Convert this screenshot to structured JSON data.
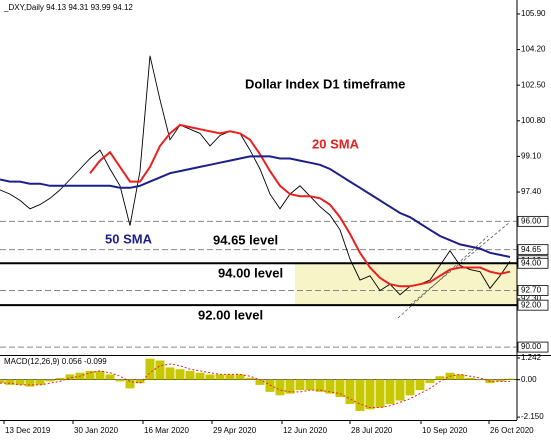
{
  "chart_data": [
    {
      "type": "line",
      "header": "_DXY,Daily  94.13 94.31 93.99 94.12",
      "title": "Dollar Index D1 timeframe",
      "x": [
        0,
        5,
        10,
        15,
        20,
        25,
        30,
        35,
        40,
        45,
        50,
        55,
        60,
        65,
        70,
        75,
        80,
        85,
        90,
        95,
        100,
        105,
        110,
        115,
        120,
        125,
        130,
        135,
        140,
        145,
        150,
        155,
        160,
        165,
        170,
        175,
        180,
        185,
        190,
        195,
        200,
        205,
        210,
        215,
        220,
        225,
        230,
        235,
        240,
        245,
        250,
        255
      ],
      "xlim": [
        0,
        258.5
      ],
      "xticks": [
        {
          "value": 2,
          "label": "13 Dec 2019"
        },
        {
          "value": 36.5,
          "label": "30 Jan 2020"
        },
        {
          "value": 71.5,
          "label": "16 Mar 2020"
        },
        {
          "value": 106,
          "label": "29 Apr 2020"
        },
        {
          "value": 141,
          "label": "12 Jun 2020"
        },
        {
          "value": 175,
          "label": "28 Jul 2020"
        },
        {
          "value": 210.5,
          "label": "10 Sep 2020"
        },
        {
          "value": 244.5,
          "label": "26 Oct 2020"
        }
      ],
      "ylim": [
        89.67,
        106.47
      ],
      "yticks": [
        {
          "value": 105.9,
          "label": "105.90"
        },
        {
          "value": 104.2,
          "label": "104.20"
        },
        {
          "value": 102.5,
          "label": "102.50"
        },
        {
          "value": 100.8,
          "label": "100.80"
        },
        {
          "value": 99.1,
          "label": "99.10"
        },
        {
          "value": 97.4,
          "label": "97.40"
        },
        {
          "value": 92.3,
          "label": "92.30"
        }
      ],
      "series": [
        {
          "color": "#000000",
          "values": [
            97.5,
            97.3,
            97.0,
            96.6,
            96.8,
            97.1,
            97.5,
            98.0,
            98.5,
            99.0,
            99.4,
            98.5,
            97.7,
            95.8,
            98.4,
            103.9,
            101.8,
            99.9,
            100.6,
            100.4,
            100.2,
            99.6,
            100.1,
            100.3,
            100.2,
            99.4,
            98.5,
            97.3,
            96.6,
            97.3,
            97.7,
            97.2,
            96.7,
            96.3,
            95.6,
            94.2,
            93.2,
            93.4,
            92.7,
            93.0,
            92.5,
            92.9,
            93.0,
            93.2,
            93.9,
            94.6,
            93.9,
            93.7,
            93.6,
            92.8,
            93.4,
            94.1
          ]
        },
        {
          "name": "20 SMA",
          "color": "#e8201f",
          "values": [
            null,
            null,
            null,
            null,
            null,
            null,
            null,
            null,
            null,
            98.3,
            98.9,
            99.3,
            98.6,
            97.9,
            97.9,
            98.6,
            99.6,
            100.2,
            100.6,
            100.5,
            100.4,
            100.3,
            100.2,
            100.3,
            100.2,
            99.9,
            99.2,
            98.4,
            97.7,
            97.3,
            97.2,
            97.2,
            97.1,
            96.8,
            96.2,
            95.4,
            94.5,
            93.8,
            93.3,
            93.0,
            92.9,
            92.9,
            93.0,
            93.1,
            93.4,
            93.7,
            93.8,
            93.8,
            93.8,
            93.6,
            93.5,
            93.6
          ]
        },
        {
          "name": "50 SMA",
          "color": "#1c1f8a",
          "values": [
            98.0,
            97.9,
            97.9,
            97.8,
            97.8,
            97.7,
            97.7,
            97.7,
            97.7,
            97.7,
            97.7,
            97.7,
            97.6,
            97.6,
            97.7,
            97.9,
            98.1,
            98.3,
            98.4,
            98.5,
            98.6,
            98.7,
            98.8,
            98.9,
            99.0,
            99.1,
            99.1,
            99.1,
            99.0,
            99.0,
            98.9,
            98.8,
            98.7,
            98.5,
            98.2,
            97.9,
            97.6,
            97.3,
            97.0,
            96.7,
            96.4,
            96.2,
            95.9,
            95.6,
            95.3,
            95.1,
            94.9,
            94.8,
            94.7,
            94.5,
            94.4,
            94.3
          ]
        }
      ],
      "levels": [
        {
          "value": 96.0,
          "label": "96.00",
          "style": "dashed"
        },
        {
          "value": 94.65,
          "label": "94.65",
          "style": "dashed"
        },
        {
          "value": 94.12,
          "label": "94.12",
          "style": "none"
        },
        {
          "value": 94.0,
          "label": "94.00",
          "style": "solid"
        },
        {
          "value": 92.7,
          "label": "92.70",
          "style": "dashed"
        },
        {
          "value": 92.0,
          "label": "92.00",
          "style": "solid"
        },
        {
          "value": 90.0,
          "label": "90.00",
          "style": "dashed"
        }
      ],
      "annotations": [
        "94.65 level",
        "94.00 level",
        "92.00 level"
      ]
    },
    {
      "type": "bar",
      "title": "MACD(12,26,9) 0.056 -0.099",
      "x": [
        0,
        5,
        10,
        15,
        20,
        25,
        30,
        35,
        40,
        45,
        50,
        55,
        60,
        65,
        70,
        75,
        80,
        85,
        90,
        95,
        100,
        105,
        110,
        115,
        120,
        125,
        130,
        135,
        140,
        145,
        150,
        155,
        160,
        165,
        170,
        175,
        180,
        185,
        190,
        195,
        200,
        205,
        210,
        215,
        220,
        225,
        230,
        235,
        240,
        245,
        250,
        255
      ],
      "xlim": [
        0,
        258.5
      ],
      "ylim": [
        -2.2,
        1.3
      ],
      "yticks": [
        {
          "value": 1.242,
          "label": "1.242"
        },
        {
          "value": 0,
          "label": "0.00"
        },
        {
          "value": -2.15,
          "label": "-2.150"
        }
      ],
      "series": [
        {
          "color": "#c8c800",
          "style": "bar",
          "values": [
            -0.2,
            -0.3,
            -0.3,
            -0.4,
            -0.3,
            -0.1,
            0.1,
            0.3,
            0.4,
            0.5,
            0.5,
            0.3,
            -0.1,
            -0.5,
            -0.2,
            1.2,
            1.1,
            0.7,
            0.6,
            0.5,
            0.4,
            0.3,
            0.3,
            0.3,
            0.3,
            0.1,
            -0.3,
            -0.7,
            -0.9,
            -0.8,
            -0.6,
            -0.6,
            -0.7,
            -0.8,
            -1.0,
            -1.4,
            -1.8,
            -1.7,
            -1.6,
            -1.4,
            -1.2,
            -0.9,
            -0.6,
            -0.2,
            0.2,
            0.4,
            0.3,
            0.1,
            0.0,
            -0.2,
            -0.1,
            0.06
          ]
        },
        {
          "color": "#e8201f",
          "style": "dotted",
          "values": [
            -0.2,
            -0.2,
            -0.3,
            -0.3,
            -0.3,
            -0.2,
            -0.1,
            0.1,
            0.2,
            0.4,
            0.5,
            0.4,
            0.2,
            -0.1,
            -0.2,
            0.4,
            0.8,
            0.9,
            0.8,
            0.6,
            0.5,
            0.4,
            0.3,
            0.3,
            0.3,
            0.2,
            0.0,
            -0.3,
            -0.6,
            -0.7,
            -0.7,
            -0.6,
            -0.6,
            -0.7,
            -0.8,
            -1.1,
            -1.4,
            -1.6,
            -1.6,
            -1.5,
            -1.3,
            -1.1,
            -0.8,
            -0.5,
            -0.1,
            0.2,
            0.3,
            0.2,
            0.1,
            -0.1,
            -0.1,
            -0.1
          ]
        }
      ]
    }
  ]
}
